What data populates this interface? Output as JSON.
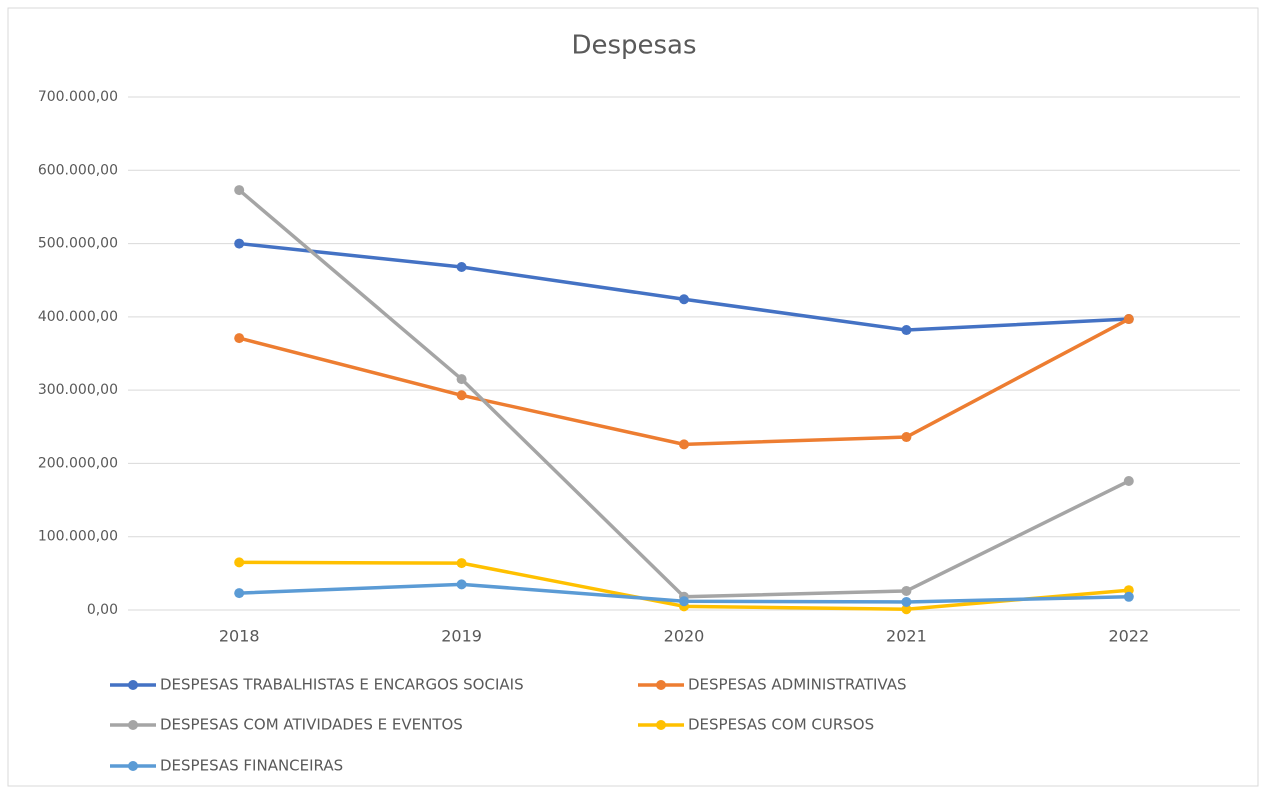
{
  "chart_data": {
    "type": "line",
    "title": "Despesas",
    "categories": [
      "2018",
      "2019",
      "2020",
      "2021",
      "2022"
    ],
    "series": [
      {
        "name": "DESPESAS TRABALHISTAS E ENCARGOS SOCIAIS",
        "color": "#4472c4",
        "values": [
          500000,
          468000,
          424000,
          382000,
          397000
        ]
      },
      {
        "name": "DESPESAS ADMINISTRATIVAS",
        "color": "#ed7d31",
        "values": [
          371000,
          293000,
          226000,
          236000,
          397000
        ]
      },
      {
        "name": "DESPESAS COM ATIVIDADES E EVENTOS",
        "color": "#a5a5a5",
        "values": [
          573000,
          315000,
          18000,
          26000,
          176000
        ]
      },
      {
        "name": "DESPESAS COM CURSOS",
        "color": "#ffc000",
        "values": [
          65000,
          64000,
          5000,
          1000,
          27000
        ]
      },
      {
        "name": "DESPESAS FINANCEIRAS",
        "color": "#5b9bd5",
        "values": [
          23000,
          35000,
          12000,
          11000,
          18000
        ]
      }
    ],
    "ylim": [
      0,
      700000
    ],
    "yticks": [
      {
        "value": 0,
        "label": "0,00"
      },
      {
        "value": 100000,
        "label": "100.000,00"
      },
      {
        "value": 200000,
        "label": "200.000,00"
      },
      {
        "value": 300000,
        "label": "300.000,00"
      },
      {
        "value": 400000,
        "label": "400.000,00"
      },
      {
        "value": 500000,
        "label": "500.000,00"
      },
      {
        "value": 600000,
        "label": "600.000,00"
      },
      {
        "value": 700000,
        "label": "700.000,00"
      }
    ],
    "grid": true,
    "legend": "bottom"
  }
}
